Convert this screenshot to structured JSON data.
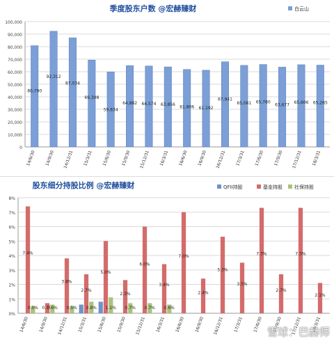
{
  "chart_data": [
    {
      "type": "bar",
      "title": "季度股东户数 @宏赫臻财",
      "legend_position": "top-right",
      "grid": true,
      "ylim": [
        0,
        100000
      ],
      "yticks": [
        "0",
        "10,000",
        "20,000",
        "30,000",
        "40,000",
        "50,000",
        "60,000",
        "70,000",
        "80,000",
        "90,000",
        "100,000"
      ],
      "categories": [
        "14/6/30",
        "14/9/30",
        "14/12/31",
        "15/3/31",
        "15/6/30",
        "15/9/30",
        "15/12/31",
        "16/3/31",
        "16/6/30",
        "16/9/30",
        "16/12/31",
        "17/3/31",
        "17/6/30",
        "17/9/30",
        "17/12/31",
        "18/3/31"
      ],
      "series": [
        {
          "name": "白云山",
          "color": "#7b9fd6",
          "values": [
            80790,
            92312,
            87034,
            69308,
            59834,
            64882,
            64574,
            63856,
            61806,
            61192,
            67941,
            65061,
            65780,
            63677,
            65606,
            65265
          ],
          "labels": [
            "80,790",
            "92,312",
            "87,034",
            "69,308",
            "59,834",
            "64,882",
            "64,574",
            "63,856",
            "61,806",
            "61,192",
            "67,941",
            "65,061",
            "65,780",
            "63,677",
            "65,606",
            "65,265"
          ]
        }
      ]
    },
    {
      "type": "bar",
      "title": "股东细分持股比例 @宏赫臻财",
      "legend_position": "top-right",
      "grid": true,
      "ylim": [
        0,
        8
      ],
      "yticks": [
        "0%",
        "1%",
        "2%",
        "3%",
        "4%",
        "5%",
        "6%",
        "7%",
        "8%"
      ],
      "categories": [
        "14/6/30",
        "14/9/30",
        "14/12/31",
        "15/3/31",
        "15/6/30",
        "15/9/30",
        "15/12/31",
        "16/3/31",
        "16/6/30",
        "16/9/30",
        "16/12/31",
        "17/3/31",
        "17/6/30",
        "17/9/30",
        "17/12/31",
        "18/3/31"
      ],
      "series": [
        {
          "name": "QFII持股",
          "color": "#6f93c8",
          "values": [
            0,
            0,
            0,
            0.6,
            0.8,
            0,
            0,
            0,
            0,
            0,
            0,
            0,
            0,
            0,
            0,
            0
          ]
        },
        {
          "name": "基金持股",
          "color": "#d46b6b",
          "values": [
            7.4,
            0.7,
            3.8,
            2.7,
            5.0,
            2.3,
            6.0,
            3.4,
            7.0,
            2.4,
            5.3,
            3.5,
            7.3,
            2.7,
            7.3,
            2.1
          ],
          "labels": [
            "7.4%",
            "0.7%",
            "3.8%",
            "2.7%",
            "5.0%",
            "2.3%",
            "6.0%",
            "3.4%",
            "7.0%",
            "2.4%",
            "5.3%",
            "3.5%",
            "7.3%",
            "2.7%",
            "7.3%",
            "2.1%"
          ]
        },
        {
          "name": "社保持股",
          "color": "#a8c47a",
          "values": [
            0.5,
            0.6,
            0.5,
            0.8,
            1.1,
            0.7,
            0.7,
            0.6,
            0,
            0,
            0,
            0,
            0,
            0,
            0,
            0
          ],
          "labels": [
            "0.5%",
            "0.6%",
            "0.5%",
            "0.8%",
            "1.1%",
            "0.7%",
            "0.7%",
            "0.6%",
            "",
            "",
            "",
            "",
            "",
            "",
            "",
            ""
          ]
        }
      ]
    }
  ],
  "watermark": "雪球：巴赫师"
}
